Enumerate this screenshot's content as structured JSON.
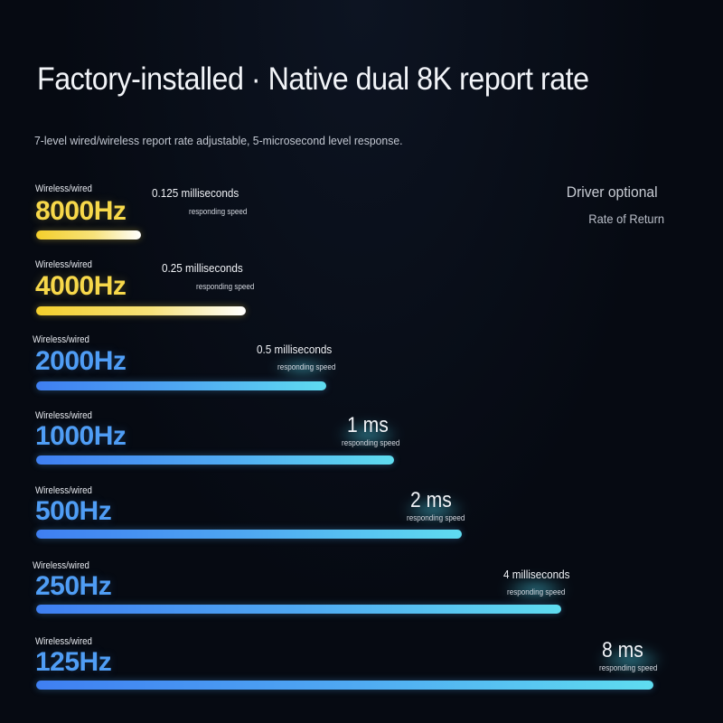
{
  "header": {
    "title": "Factory-installed · Native dual 8K report rate",
    "subtitle": "7-level wired/wireless report rate adjustable, 5-microsecond level response."
  },
  "side_labels": {
    "driver": "Driver optional",
    "return": "Rate of Return"
  },
  "rates": [
    {
      "mode": "Wireless/wired",
      "rate": "8000Hz",
      "latency": "0.125 milliseconds",
      "response": "responding speed",
      "style": "gold",
      "bar_fraction": 0.17
    },
    {
      "mode": "Wireless/wired",
      "rate": "4000Hz",
      "latency": "0.25 milliseconds",
      "response": "responding speed",
      "style": "gold",
      "bar_fraction": 0.34
    },
    {
      "mode": "Wireless/wired",
      "rate": "2000Hz",
      "latency": "0.5 milliseconds",
      "response": "responding speed",
      "style": "blue",
      "bar_fraction": 0.47
    },
    {
      "mode": "Wireless/wired",
      "rate": "1000Hz",
      "latency": "1 ms",
      "response": "responding speed",
      "style": "blue",
      "bar_fraction": 0.58
    },
    {
      "mode": "Wireless/wired",
      "rate": "500Hz",
      "latency": "2 ms",
      "response": "responding speed",
      "style": "blue",
      "bar_fraction": 0.69
    },
    {
      "mode": "Wireless/wired",
      "rate": "250Hz",
      "latency": "4 milliseconds",
      "response": "responding speed",
      "style": "blue",
      "bar_fraction": 0.85
    },
    {
      "mode": "Wireless/wired",
      "rate": "125Hz",
      "latency": "8 ms",
      "response": "responding speed",
      "style": "blue",
      "bar_fraction": 1.0
    }
  ],
  "colors": {
    "background": "#060a12",
    "gold": "#f7d84a",
    "blue": "#4f9df5",
    "cyan": "#5fdcf0"
  }
}
